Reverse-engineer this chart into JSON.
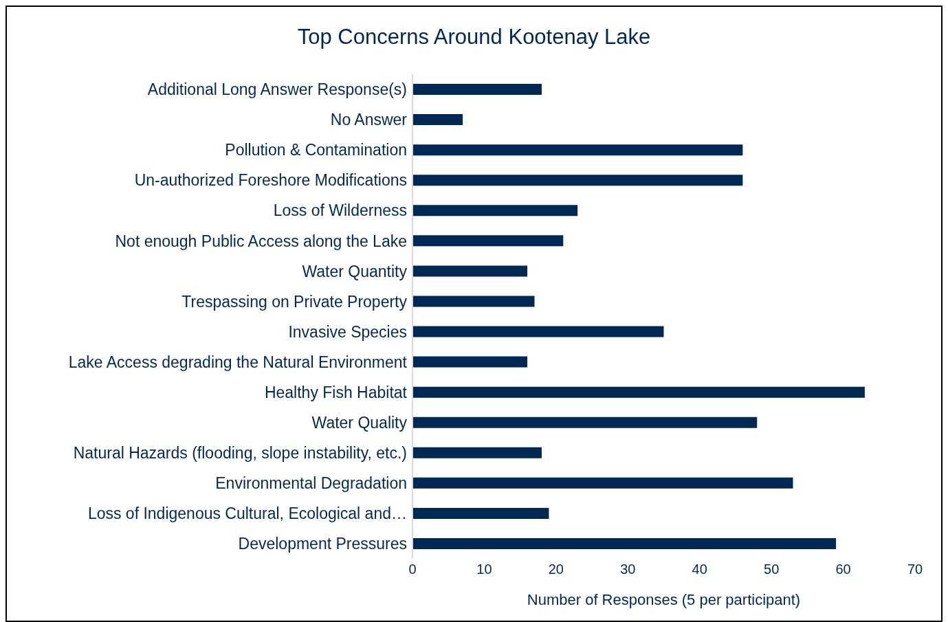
{
  "chart_data": {
    "type": "bar",
    "orientation": "horizontal",
    "title": "Top Concerns Around Kootenay Lake",
    "xlabel": "Number of Responses (5 per participant)",
    "categories": [
      "Additional Long Answer Response(s)",
      "No Answer",
      "Pollution & Contamination",
      "Un-authorized Foreshore Modifications",
      "Loss of Wilderness",
      "Not enough Public Access along the Lake",
      "Water Quantity",
      "Trespassing on Private Property",
      "Invasive Species",
      "Lake Access degrading the Natural Environment",
      "Healthy Fish Habitat",
      "Water Quality",
      "Natural Hazards (flooding, slope instability, etc.)",
      "Environmental Degradation",
      "Loss of Indigenous Cultural, Ecological and…",
      "Development Pressures"
    ],
    "values": [
      18,
      7,
      46,
      46,
      23,
      21,
      16,
      17,
      35,
      16,
      63,
      48,
      18,
      53,
      19,
      59
    ],
    "color": "#002855",
    "xlim": [
      0,
      70
    ],
    "xticks": [
      0,
      10,
      20,
      30,
      40,
      50,
      60,
      70
    ]
  }
}
